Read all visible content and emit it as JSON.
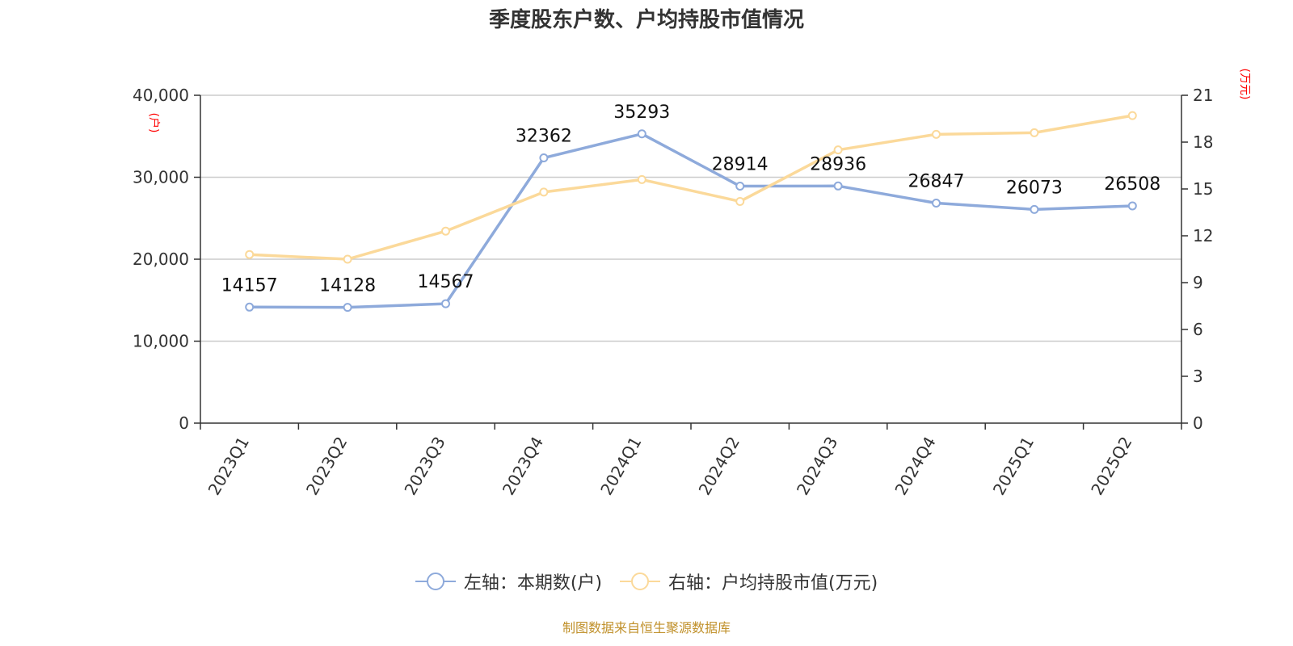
{
  "chart_data": {
    "type": "line",
    "title": "季度股东户数、户均持股市值情况",
    "categories": [
      "2023Q1",
      "2023Q2",
      "2023Q3",
      "2023Q4",
      "2024Q1",
      "2024Q2",
      "2024Q3",
      "2024Q4",
      "2025Q1",
      "2025Q2"
    ],
    "series": [
      {
        "name": "左轴：本期数(户)",
        "axis": "left",
        "color": "#8eaadb",
        "values": [
          14157,
          14128,
          14567,
          32362,
          35293,
          28914,
          28936,
          26847,
          26073,
          26508
        ],
        "labels": [
          "14157",
          "14128",
          "14567",
          "32362",
          "35293",
          "28914",
          "28936",
          "26847",
          "26073",
          "26508"
        ]
      },
      {
        "name": "右轴：户均持股市值(万元)",
        "axis": "right",
        "color": "#fbd99a",
        "values": [
          10.8,
          10.5,
          12.3,
          14.8,
          15.6,
          14.2,
          17.5,
          18.5,
          18.6,
          19.7
        ]
      }
    ],
    "left_axis": {
      "unit": "(户)",
      "ylim": [
        0,
        40000
      ],
      "ticks": [
        "0",
        "10,000",
        "20,000",
        "30,000",
        "40,000"
      ]
    },
    "right_axis": {
      "unit": "(万元)",
      "ylim": [
        0,
        21
      ],
      "ticks": [
        "0",
        "3",
        "6",
        "9",
        "12",
        "15",
        "18",
        "21"
      ]
    },
    "grid": true,
    "legend_position": "bottom-center",
    "source": "制图数据来自恒生聚源数据库"
  }
}
